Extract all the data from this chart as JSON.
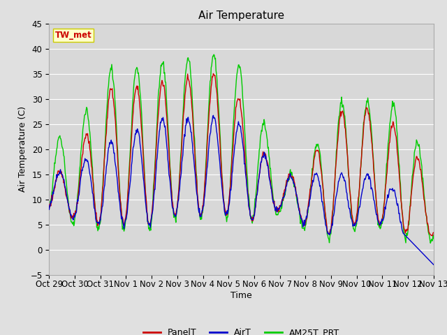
{
  "title": "Air Temperature",
  "xlabel": "Time",
  "ylabel": "Air Temperature (C)",
  "ylim": [
    -5,
    45
  ],
  "yticks": [
    -5,
    0,
    5,
    10,
    15,
    20,
    25,
    30,
    35,
    40,
    45
  ],
  "xtick_labels": [
    "Oct 29",
    "Oct 30",
    "Oct 31",
    "Nov 1",
    "Nov 2",
    "Nov 3",
    "Nov 4",
    "Nov 5",
    "Nov 6",
    "Nov 7",
    "Nov 8",
    "Nov 9",
    "Nov 10",
    "Nov 11",
    "Nov 12",
    "Nov 13"
  ],
  "legend_labels": [
    "PanelT",
    "AirT",
    "AM25T_PRT"
  ],
  "legend_colors": [
    "#cc0000",
    "#0000cc",
    "#00cc00"
  ],
  "panel_label": "TW_met",
  "panel_label_color": "#cc0000",
  "panel_box_color": "#ffffcc",
  "panel_box_edge": "#cccc00",
  "bg_color": "#e0e0e0",
  "plot_bg": "#d8d8d8",
  "grid_color": "#ffffff",
  "line_width": 1.0,
  "figsize": [
    6.4,
    4.8
  ],
  "dpi": 100
}
